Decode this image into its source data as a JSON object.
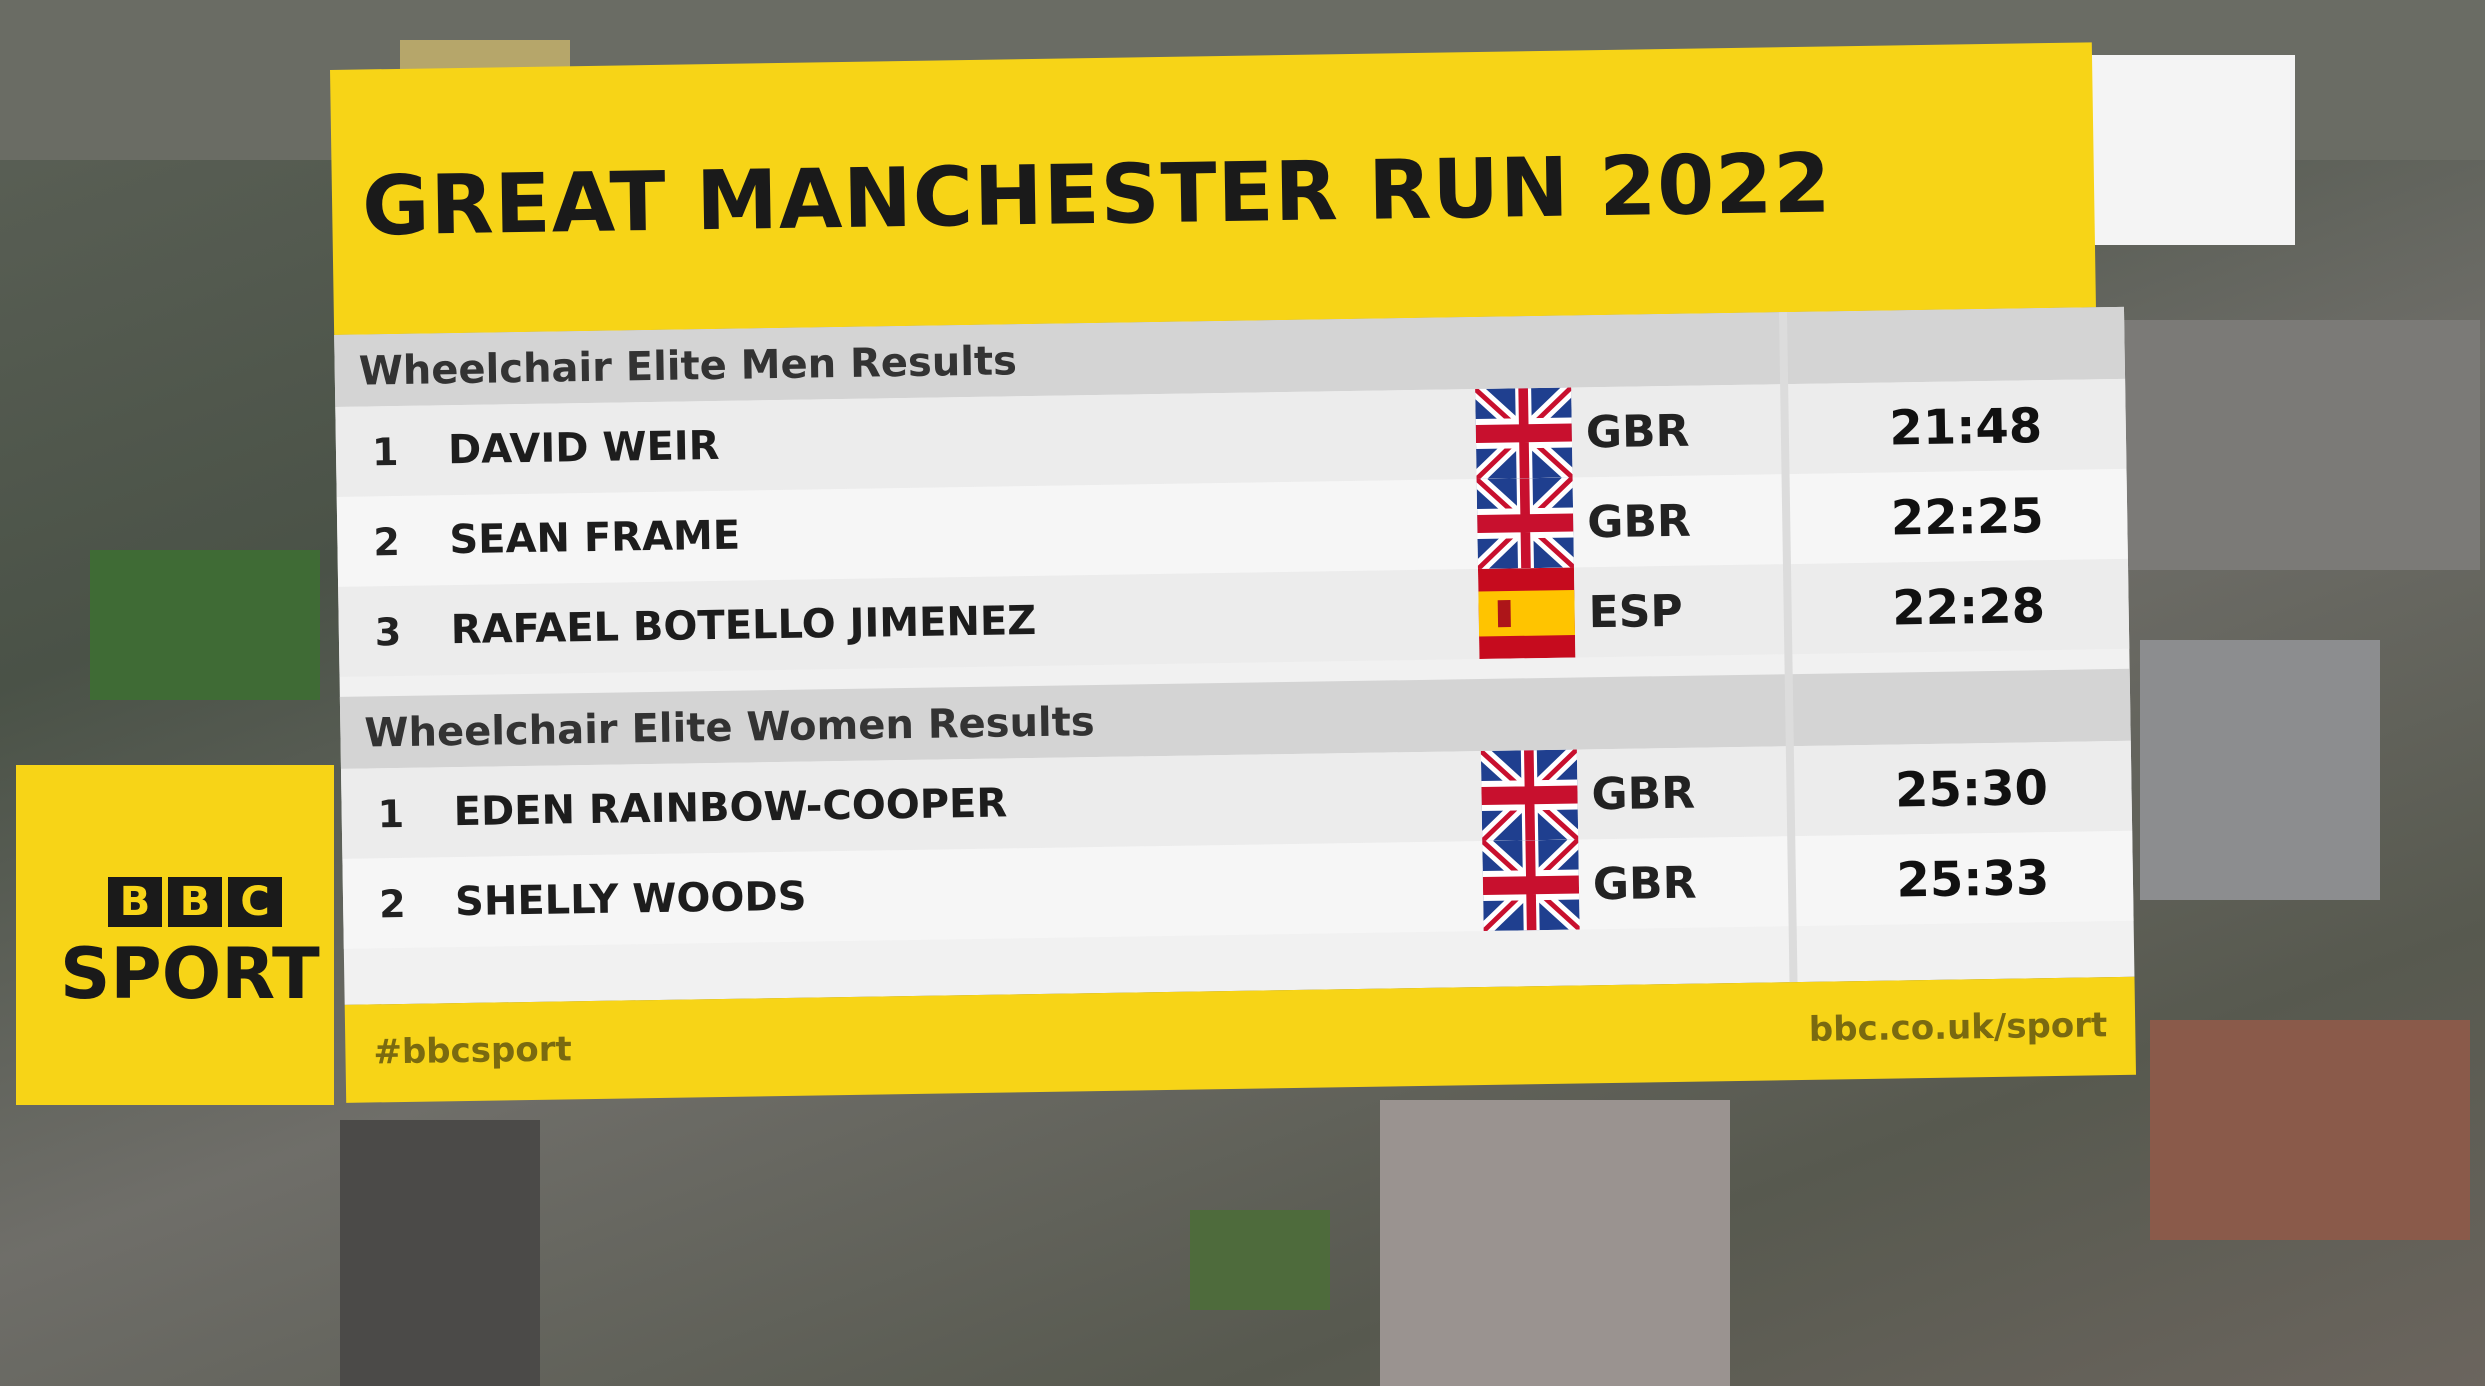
{
  "header": {
    "title": "GREAT MANCHESTER RUN 2022"
  },
  "sections": [
    {
      "title": "Wheelchair Elite Men Results",
      "rows": [
        {
          "rank": "1",
          "name": "DAVID WEIR",
          "country": "GBR",
          "time": "21:48"
        },
        {
          "rank": "2",
          "name": "SEAN FRAME",
          "country": "GBR",
          "time": "22:25"
        },
        {
          "rank": "3",
          "name": "RAFAEL BOTELLO JIMENEZ",
          "country": "ESP",
          "time": "22:28"
        }
      ]
    },
    {
      "title": "Wheelchair Elite Women Results",
      "rows": [
        {
          "rank": "1",
          "name": "EDEN RAINBOW-COOPER",
          "country": "GBR",
          "time": "25:30"
        },
        {
          "rank": "2",
          "name": "SHELLY WOODS",
          "country": "GBR",
          "time": "25:33"
        }
      ]
    }
  ],
  "footer": {
    "left": "#bbcsport",
    "right": "bbc.co.uk/sport"
  },
  "logo": {
    "letters": [
      "B",
      "B",
      "C"
    ],
    "word": "SPORT"
  }
}
